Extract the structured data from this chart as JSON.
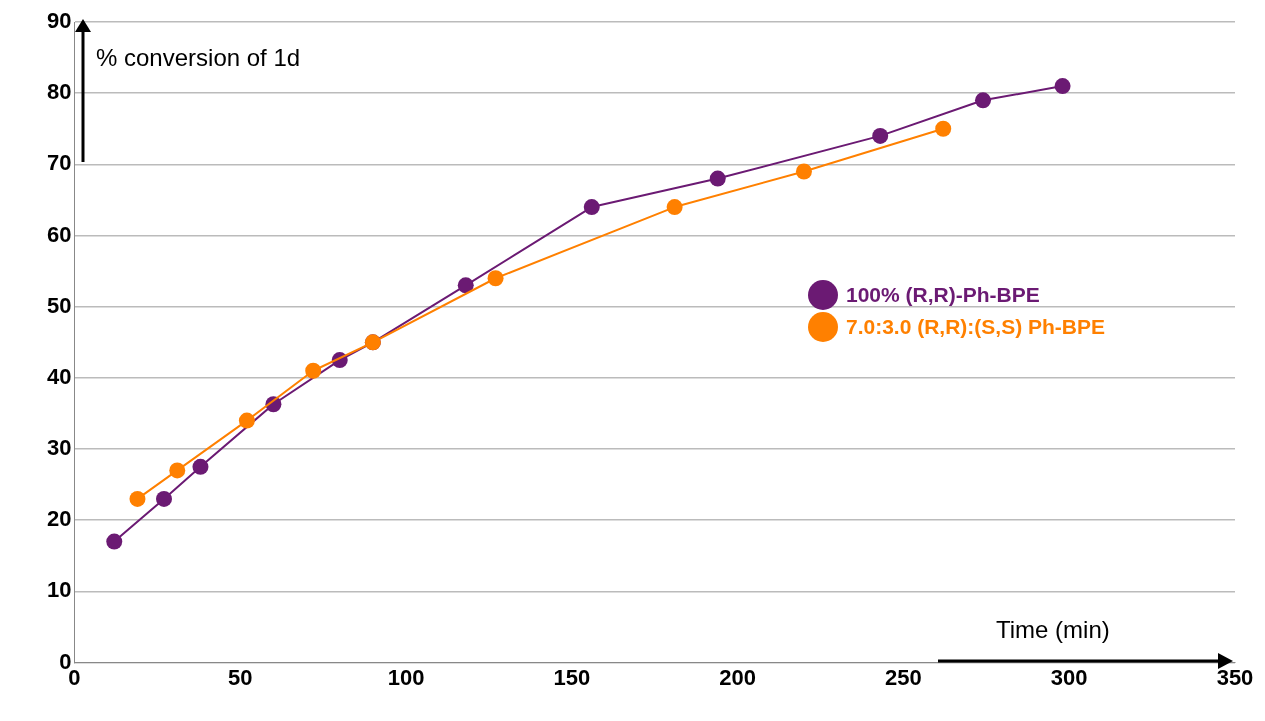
{
  "chart_data": {
    "type": "line",
    "xlabel": "Time (min)",
    "ylabel": "% conversion of 1d",
    "xlim": [
      0,
      350
    ],
    "xticks": [
      0,
      50,
      100,
      150,
      200,
      250,
      300,
      350
    ],
    "ylim": [
      0,
      90
    ],
    "yticks": [
      0,
      10,
      20,
      30,
      40,
      50,
      60,
      70,
      80,
      90
    ],
    "grid": "y",
    "legend": "right",
    "marker": "circle",
    "line_style": "solid",
    "series": [
      {
        "name": "100% (R,R)-Ph-BPE",
        "color": "#6b1a73",
        "x": [
          12,
          27,
          38,
          60,
          80,
          90,
          118,
          156,
          194,
          243,
          274,
          298
        ],
        "values": [
          17,
          23,
          27.5,
          36.3,
          42.5,
          45,
          53,
          64,
          68,
          74,
          79,
          81
        ]
      },
      {
        "name": "7.0:3.0 (R,R):(S,S) Ph-BPE",
        "color": "#ff8000",
        "x": [
          19,
          31,
          52,
          72,
          90,
          127,
          181,
          220,
          262
        ],
        "values": [
          23,
          27,
          34,
          41,
          45,
          54,
          64,
          69,
          75
        ]
      }
    ]
  }
}
